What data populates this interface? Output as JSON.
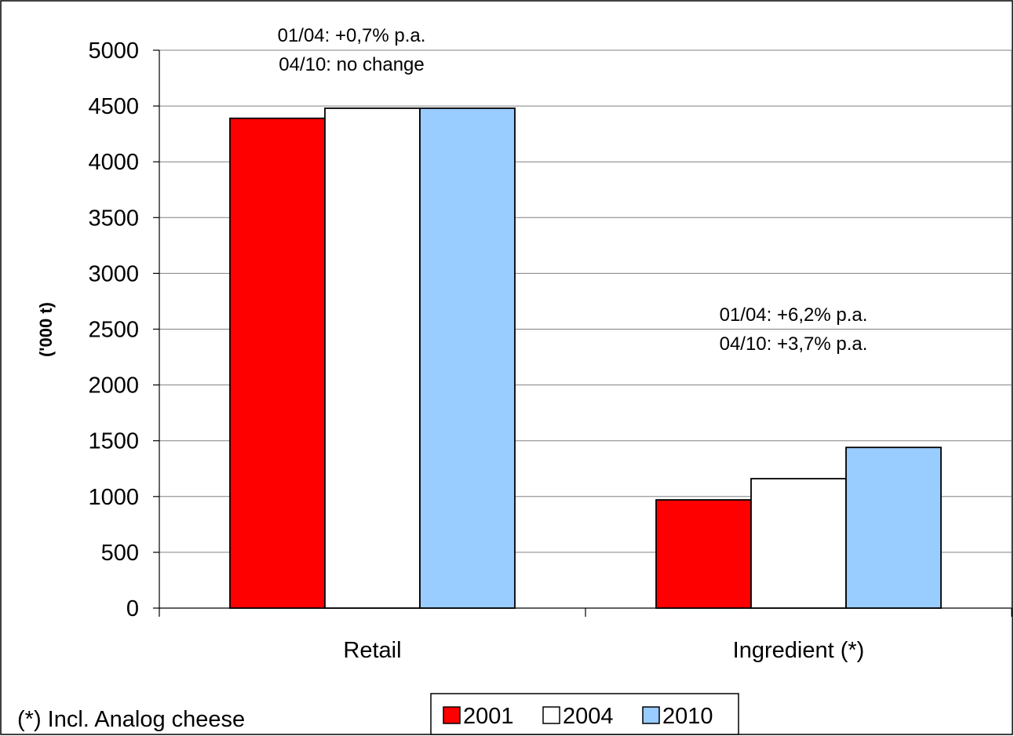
{
  "chart_data": {
    "type": "bar",
    "categories": [
      "Retail",
      "Ingredient (*)"
    ],
    "series": [
      {
        "name": "2001",
        "values": [
          4390,
          970
        ],
        "color": "#ff0000"
      },
      {
        "name": "2004",
        "values": [
          4480,
          1160
        ],
        "color": "#ffffff"
      },
      {
        "name": "2010",
        "values": [
          4480,
          1440
        ],
        "color": "#99ccff"
      }
    ],
    "title": "",
    "xlabel": "",
    "ylabel": "('000 t)",
    "ylim": [
      0,
      5000
    ],
    "yticks": [
      "0",
      "500",
      "1000",
      "1500",
      "2000",
      "2500",
      "3000",
      "3500",
      "4000",
      "4500",
      "5000"
    ],
    "grid": true,
    "legend_position": "bottom",
    "annotations": [
      {
        "lines": [
          "01/04: +0,7% p.a.",
          "04/10: no change"
        ],
        "category": "Retail"
      },
      {
        "lines": [
          "01/04: +6,2% p.a.",
          "04/10: +3,7% p.a."
        ],
        "category": "Ingredient (*)"
      }
    ],
    "footnote": "(*) Incl. Analog cheese"
  }
}
